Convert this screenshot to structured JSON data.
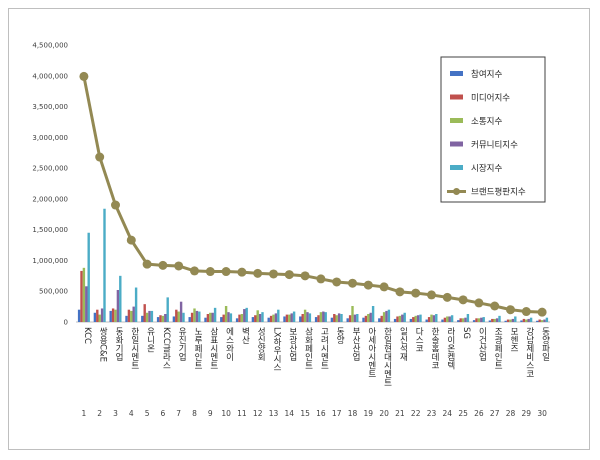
{
  "chart_data": {
    "type": "bar",
    "title": "",
    "xlabel": "",
    "ylabel": "",
    "ylim": [
      0,
      4500000
    ],
    "y_ticks": [
      "0",
      "500,000",
      "1,000,000",
      "1,500,000",
      "2,000,000",
      "2,500,000",
      "3,000,000",
      "3,500,000",
      "4,000,000",
      "4,500,000"
    ],
    "grid": false,
    "legend_position": "right",
    "ranks": [
      "1",
      "2",
      "3",
      "4",
      "5",
      "6",
      "7",
      "8",
      "9",
      "10",
      "11",
      "12",
      "13",
      "14",
      "15",
      "16",
      "17",
      "18",
      "19",
      "20",
      "21",
      "22",
      "23",
      "24",
      "25",
      "26",
      "27",
      "28",
      "29",
      "30"
    ],
    "categories": [
      "KCC",
      "쌍용C&E",
      "동화기업",
      "한일시멘트",
      "유니온",
      "KCC글라스",
      "유진기업",
      "노루페인트",
      "삼표시멘트",
      "에스와이",
      "벽산",
      "성신양회",
      "LX하우시스",
      "보광산업",
      "삼화페인트",
      "고려시멘트",
      "동양",
      "부산산업",
      "아세아시멘트",
      "한일현대시멘트",
      "일신석재",
      "다스코",
      "한솔홈데코",
      "라이온켐텍",
      "SG",
      "이건산업",
      "조광페인트",
      "모헨즈",
      "강남제비스코",
      "동양파일"
    ],
    "series": [
      {
        "name": "참여지수",
        "color": "#4472c4",
        "values": [
          200000,
          150000,
          180000,
          100000,
          100000,
          80000,
          90000,
          80000,
          70000,
          80000,
          60000,
          80000,
          70000,
          90000,
          90000,
          80000,
          70000,
          60000,
          70000,
          60000,
          50000,
          50000,
          40000,
          40000,
          30000,
          30000,
          25000,
          20000,
          25000,
          20000
        ]
      },
      {
        "name": "미디어지수",
        "color": "#c0504d",
        "values": [
          830000,
          200000,
          220000,
          200000,
          290000,
          110000,
          200000,
          150000,
          130000,
          120000,
          120000,
          110000,
          100000,
          120000,
          130000,
          110000,
          130000,
          110000,
          100000,
          100000,
          90000,
          80000,
          80000,
          70000,
          60000,
          60000,
          50000,
          40000,
          50000,
          40000
        ]
      },
      {
        "name": "소통지수",
        "color": "#9bbb59",
        "values": [
          880000,
          120000,
          200000,
          180000,
          150000,
          100000,
          170000,
          220000,
          150000,
          260000,
          130000,
          190000,
          120000,
          120000,
          200000,
          160000,
          110000,
          260000,
          130000,
          160000,
          100000,
          100000,
          120000,
          90000,
          60000,
          60000,
          50000,
          40000,
          40000,
          30000
        ]
      },
      {
        "name": "커뮤니티지수",
        "color": "#8064a2",
        "values": [
          580000,
          220000,
          520000,
          250000,
          180000,
          130000,
          330000,
          180000,
          150000,
          160000,
          210000,
          130000,
          140000,
          140000,
          160000,
          170000,
          140000,
          120000,
          150000,
          180000,
          120000,
          110000,
          110000,
          90000,
          70000,
          70000,
          60000,
          50000,
          50000,
          40000
        ]
      },
      {
        "name": "시장지수",
        "color": "#4bacc6",
        "values": [
          1450000,
          1840000,
          750000,
          560000,
          180000,
          400000,
          150000,
          170000,
          230000,
          140000,
          230000,
          160000,
          200000,
          170000,
          140000,
          160000,
          130000,
          130000,
          260000,
          200000,
          150000,
          120000,
          130000,
          110000,
          130000,
          80000,
          100000,
          90000,
          70000,
          70000
        ]
      },
      {
        "name": "브랜드평판지수",
        "color": "#938953",
        "values": [
          3990000,
          2680000,
          1900000,
          1330000,
          940000,
          920000,
          910000,
          830000,
          820000,
          820000,
          810000,
          790000,
          780000,
          770000,
          750000,
          700000,
          650000,
          630000,
          600000,
          570000,
          490000,
          470000,
          440000,
          400000,
          360000,
          310000,
          260000,
          200000,
          170000,
          160000
        ]
      }
    ]
  }
}
